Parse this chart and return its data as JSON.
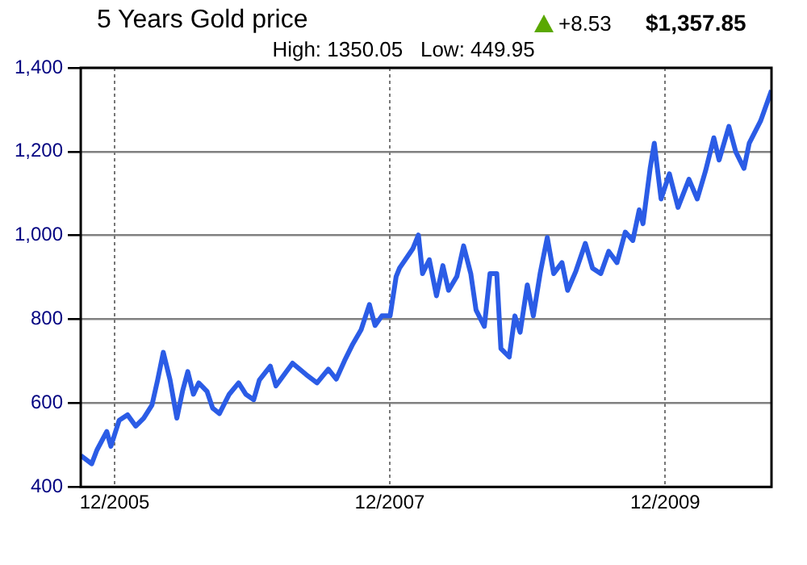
{
  "chart_data": {
    "type": "line",
    "title": "5 Years Gold price",
    "subtitle": "High: 1350.05   Low: 449.95",
    "annotations": [
      "+8.53",
      "$1,357.85"
    ],
    "x": [
      "2005-09-02",
      "2005-10-01",
      "2005-10-15",
      "2005-11-10",
      "2005-11-21",
      "2005-12-13",
      "2006-01-04",
      "2006-01-26",
      "2006-02-16",
      "2006-03-10",
      "2006-03-25",
      "2006-04-09",
      "2006-04-27",
      "2006-05-15",
      "2006-05-30",
      "2006-06-13",
      "2006-06-28",
      "2006-07-12",
      "2006-08-03",
      "2006-08-18",
      "2006-09-05",
      "2006-10-01",
      "2006-10-26",
      "2006-11-14",
      "2006-12-05",
      "2006-12-20",
      "2007-01-18",
      "2007-02-02",
      "2007-03-18",
      "2007-04-23",
      "2007-05-22",
      "2007-06-21",
      "2007-07-12",
      "2007-08-03",
      "2007-08-25",
      "2007-09-16",
      "2007-10-08",
      "2007-10-23",
      "2007-11-10",
      "2007-12-02",
      "2007-12-18",
      "2007-12-27",
      "2008-01-31",
      "2008-02-15",
      "2008-02-26",
      "2008-03-15",
      "2008-04-03",
      "2008-04-20",
      "2008-05-05",
      "2008-05-27",
      "2008-06-14",
      "2008-07-03",
      "2008-07-17",
      "2008-08-08",
      "2008-08-23",
      "2008-09-10",
      "2008-09-21",
      "2008-10-13",
      "2008-10-28",
      "2008-11-11",
      "2008-11-30",
      "2008-12-16",
      "2009-01-03",
      "2009-01-22",
      "2009-02-08",
      "2009-03-02",
      "2009-03-17",
      "2009-04-08",
      "2009-05-03",
      "2009-05-22",
      "2009-06-13",
      "2009-07-04",
      "2009-07-26",
      "2009-08-17",
      "2009-09-06",
      "2009-09-23",
      "2009-10-03",
      "2009-10-22",
      "2009-11-02",
      "2009-11-20",
      "2009-12-12",
      "2010-01-04",
      "2010-02-02",
      "2010-02-24",
      "2010-03-18",
      "2010-04-09",
      "2010-04-23",
      "2010-05-19",
      "2010-06-06",
      "2010-06-28",
      "2010-07-12",
      "2010-08-11",
      "2010-09-09"
    ],
    "series": [
      {
        "color": "#2b5ce6",
        "values": [
          475,
          455,
          488,
          532,
          497,
          559,
          572,
          545,
          564,
          595,
          655,
          721,
          655,
          564,
          628,
          675,
          621,
          648,
          628,
          588,
          575,
          621,
          648,
          621,
          608,
          655,
          688,
          641,
          695,
          668,
          648,
          681,
          657,
          701,
          741,
          775,
          835,
          785,
          808,
          808,
          902,
          922,
          968,
          1001,
          909,
          942,
          856,
          928,
          869,
          902,
          975,
          909,
          822,
          783,
          909,
          909,
          730,
          710,
          808,
          769,
          882,
          808,
          909,
          995,
          909,
          935,
          869,
          915,
          981,
          922,
          909,
          962,
          935,
          1008,
          988,
          1061,
          1028,
          1160,
          1220,
          1087,
          1147,
          1067,
          1134,
          1087,
          1154,
          1233,
          1180,
          1260,
          1200,
          1160,
          1220,
          1273,
          1346
        ]
      }
    ],
    "xlim": [
      "2005-09-02",
      "2010-09-09"
    ],
    "xticks": [
      {
        "value": "2005-12-01",
        "label": "12/2005"
      },
      {
        "value": "2007-12-01",
        "label": "12/2007"
      },
      {
        "value": "2009-12-01",
        "label": "12/2009"
      }
    ],
    "ylim": [
      400,
      1400
    ],
    "yticks": [
      {
        "value": 400,
        "label": "400"
      },
      {
        "value": 600,
        "label": "600"
      },
      {
        "value": 800,
        "label": "800"
      },
      {
        "value": 1000,
        "label": "1,000"
      },
      {
        "value": 1200,
        "label": "1,200"
      },
      {
        "value": 1400,
        "label": "1,400"
      }
    ],
    "grid": true,
    "legend": false,
    "marker": "none",
    "line_style": "solid"
  }
}
